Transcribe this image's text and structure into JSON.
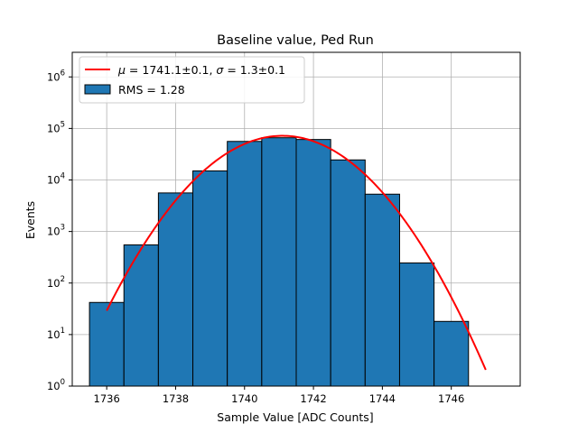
{
  "chart_data": {
    "type": "bar",
    "title": "Baseline value, Ped Run",
    "xlabel": "Sample Value [ADC Counts]",
    "ylabel": "Events",
    "yscale": "log",
    "xlim": [
      1735.0,
      1748.0
    ],
    "ylim": [
      1,
      3000000
    ],
    "grid": true,
    "legend_position": "top-left",
    "x_ticks": [
      1736,
      1738,
      1740,
      1742,
      1744,
      1746
    ],
    "y_ticks": [
      {
        "value": 1,
        "base": "10",
        "exp": "0"
      },
      {
        "value": 10,
        "base": "10",
        "exp": "1"
      },
      {
        "value": 100,
        "base": "10",
        "exp": "2"
      },
      {
        "value": 1000,
        "base": "10",
        "exp": "3"
      },
      {
        "value": 10000,
        "base": "10",
        "exp": "4"
      },
      {
        "value": 100000,
        "base": "10",
        "exp": "5"
      },
      {
        "value": 1000000,
        "base": "10",
        "exp": "6"
      }
    ],
    "histogram": {
      "name": "RMS = 1.28",
      "color": "#1f77b4",
      "edge_color": "#000000",
      "bins": [
        {
          "x0": 1735.5,
          "x1": 1736.5,
          "count": 42
        },
        {
          "x0": 1736.5,
          "x1": 1737.5,
          "count": 550
        },
        {
          "x0": 1737.5,
          "x1": 1738.5,
          "count": 5600
        },
        {
          "x0": 1738.5,
          "x1": 1739.5,
          "count": 15000
        },
        {
          "x0": 1739.5,
          "x1": 1740.5,
          "count": 56000
        },
        {
          "x0": 1740.5,
          "x1": 1741.5,
          "count": 66000
        },
        {
          "x0": 1741.5,
          "x1": 1742.5,
          "count": 61000
        },
        {
          "x0": 1742.5,
          "x1": 1743.5,
          "count": 24500
        },
        {
          "x0": 1743.5,
          "x1": 1744.5,
          "count": 5300
        },
        {
          "x0": 1744.5,
          "x1": 1745.5,
          "count": 245
        },
        {
          "x0": 1745.5,
          "x1": 1746.5,
          "count": 18
        }
      ]
    },
    "fit": {
      "color": "#ff0000",
      "legend_prefix": "μ",
      "legend_mid": " = 1741.1±0.1, ",
      "legend_sigma": "σ",
      "legend_suffix": " = 1.3±0.1",
      "mu": 1741.1,
      "sigma": 1.29,
      "amplitude": 72000,
      "x_range": [
        1736.0,
        1747.0
      ]
    }
  }
}
